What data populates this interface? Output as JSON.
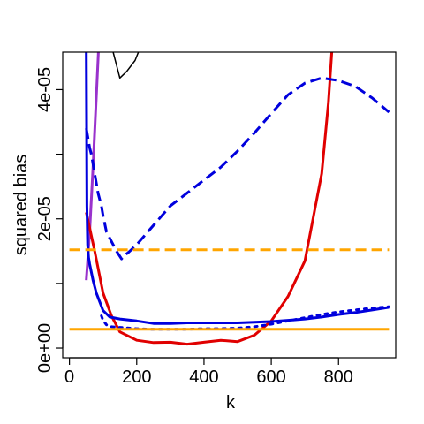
{
  "chart_data": {
    "type": "line",
    "xlabel": "k",
    "ylabel": "squared bias",
    "xlim": [
      -20,
      970
    ],
    "ylim": [
      -1.5e-06,
      4.58e-05
    ],
    "x_ticks": [
      {
        "value": 0,
        "label": "0"
      },
      {
        "value": 200,
        "label": "200"
      },
      {
        "value": 400,
        "label": "400"
      },
      {
        "value": 600,
        "label": "600"
      },
      {
        "value": 800,
        "label": "800"
      }
    ],
    "y_ticks": [
      {
        "value": 0,
        "label": "0e+00"
      },
      {
        "value": 1e-05,
        "label": ""
      },
      {
        "value": 2e-05,
        "label": "2e-05"
      },
      {
        "value": 3e-05,
        "label": ""
      },
      {
        "value": 4e-05,
        "label": "4e-05"
      }
    ],
    "grid": false,
    "legend": "none",
    "series": [
      {
        "color": "#000000",
        "style": "solid",
        "width": 1.5,
        "x": [
          130,
          150,
          170,
          195,
          205
        ],
        "y": [
          4.58e-05,
          4.18e-05,
          4.28e-05,
          4.45e-05,
          4.58e-05
        ]
      },
      {
        "color": "#9932CC",
        "style": "solid",
        "width": 3,
        "x": [
          50,
          60,
          70,
          80,
          86
        ],
        "y": [
          1.05e-05,
          1.8e-05,
          2.8e-05,
          3.9e-05,
          4.58e-05
        ]
      },
      {
        "color": "#e00000",
        "style": "solid",
        "width": 3,
        "x": [
          50,
          75,
          100,
          125,
          150,
          200,
          250,
          300,
          350,
          400,
          450,
          500,
          550,
          600,
          650,
          700,
          750,
          770,
          780
        ],
        "y": [
          2.1e-05,
          1.5e-05,
          8.5e-06,
          5e-06,
          2.5e-06,
          1.2e-06,
          8.5e-07,
          9e-07,
          6e-07,
          9e-07,
          1.2e-06,
          1e-06,
          2e-06,
          4.2e-06,
          8e-06,
          1.35e-05,
          2.7e-05,
          3.8e-05,
          4.58e-05
        ]
      },
      {
        "color": "#0000dd",
        "style": "solid",
        "width": 3,
        "x": [
          50,
          52,
          54,
          57,
          60,
          70,
          80,
          100,
          120,
          150,
          200,
          250,
          300,
          350,
          400,
          450,
          500,
          550,
          600,
          650,
          700,
          750,
          800,
          850,
          900,
          950
        ],
        "y": [
          4.58e-05,
          2.2e-05,
          1.6e-05,
          1.4e-05,
          1.3e-05,
          1.05e-05,
          8.5e-06,
          5.8e-06,
          4.8e-06,
          4.5e-06,
          4.2e-06,
          3.8e-06,
          3.8e-06,
          3.9e-06,
          3.9e-06,
          3.9e-06,
          3.9e-06,
          4e-06,
          4.1e-06,
          4.3e-06,
          4.5e-06,
          4.8e-06,
          5.2e-06,
          5.5e-06,
          5.9e-06,
          6.3e-06
        ]
      },
      {
        "color": "#0000dd",
        "style": "dashed",
        "width": 3,
        "x": [
          50,
          55,
          60,
          65,
          75,
          85,
          95,
          100,
          110,
          125,
          140,
          155,
          160,
          175,
          200,
          250,
          300,
          350,
          400,
          450,
          500,
          550,
          600,
          650,
          700,
          750,
          800,
          850,
          900,
          950
        ],
        "y": [
          3.4e-05,
          3.25e-05,
          3.1e-05,
          3e-05,
          2.7e-05,
          2.4e-05,
          2.2e-05,
          2.05e-05,
          1.8e-05,
          1.65e-05,
          1.5e-05,
          1.38e-05,
          1.42e-05,
          1.48e-05,
          1.6e-05,
          1.9e-05,
          2.2e-05,
          2.4e-05,
          2.6e-05,
          2.8e-05,
          3.05e-05,
          3.33e-05,
          3.63e-05,
          3.92e-05,
          4.1e-05,
          4.18e-05,
          4.14e-05,
          4.05e-05,
          3.87e-05,
          3.65e-05
        ]
      },
      {
        "color": "#0000dd",
        "style": "dotted",
        "width": 3,
        "x": [
          95,
          100,
          110,
          125,
          150,
          200,
          250,
          300,
          350,
          400,
          450,
          500,
          550,
          600,
          650,
          700,
          750,
          800,
          850,
          900,
          950
        ],
        "y": [
          5e-06,
          4.3e-06,
          3.6e-06,
          3.3e-06,
          3.2e-06,
          3e-06,
          2.9e-06,
          2.9e-06,
          2.9e-06,
          3e-06,
          3e-06,
          3.1e-06,
          3.3e-06,
          3.7e-06,
          4.2e-06,
          4.7e-06,
          5.2e-06,
          5.6e-06,
          5.9e-06,
          6.2e-06,
          6.4e-06
        ]
      },
      {
        "color": "#ffa500",
        "style": "solid",
        "width": 3,
        "x": [
          0,
          950
        ],
        "y": [
          2.9e-06,
          2.9e-06
        ]
      },
      {
        "color": "#ffa500",
        "style": "dashed",
        "width": 3,
        "x": [
          0,
          950
        ],
        "y": [
          1.52e-05,
          1.52e-05
        ]
      }
    ]
  }
}
